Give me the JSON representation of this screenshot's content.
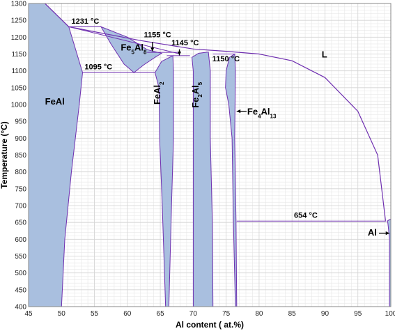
{
  "chart_data": {
    "type": "area",
    "title": "",
    "xlabel": "Al content ( at.%)",
    "ylabel": "Temperature (°C)",
    "xlim": [
      45,
      100
    ],
    "ylim": [
      400,
      1300
    ],
    "xticks": [
      45,
      50,
      55,
      60,
      65,
      70,
      75,
      80,
      85,
      90,
      95,
      100
    ],
    "yticks": [
      400,
      450,
      500,
      550,
      600,
      650,
      700,
      750,
      800,
      850,
      900,
      950,
      1000,
      1050,
      1100,
      1150,
      1200,
      1250,
      1300
    ],
    "grid": true,
    "colors": {
      "phase_fill": "#a9bfdf",
      "boundary": "#6f2fb0",
      "grid": "#d4d4d4"
    },
    "phase_regions": [
      {
        "label": "FeAl",
        "polygon": [
          [
            45,
            1300
          ],
          [
            47.5,
            1300
          ],
          [
            51.1,
            1231
          ],
          [
            53.2,
            1095
          ],
          [
            52.7,
            1000
          ],
          [
            51.5,
            800
          ],
          [
            50.5,
            600
          ],
          [
            50,
            400
          ],
          [
            45,
            400
          ]
        ]
      },
      {
        "label": "Fe5Al8",
        "polygon": [
          [
            56,
            1231
          ],
          [
            60,
            1200
          ],
          [
            63,
            1163
          ],
          [
            65.2,
            1152
          ],
          [
            64.2,
            1140
          ],
          [
            62.5,
            1118
          ],
          [
            61,
            1095
          ],
          [
            59.5,
            1120
          ],
          [
            57.5,
            1180
          ]
        ]
      },
      {
        "label": "FeAl2",
        "polygon": [
          [
            64.2,
            1095
          ],
          [
            65.2,
            1128
          ],
          [
            66.9,
            1145
          ],
          [
            67,
            1100
          ],
          [
            67,
            900
          ],
          [
            66.7,
            700
          ],
          [
            66.3,
            400
          ],
          [
            65.8,
            400
          ],
          [
            65.3,
            700
          ],
          [
            64.9,
            900
          ],
          [
            64.8,
            1050
          ]
        ]
      },
      {
        "label": "Fe2Al5",
        "polygon": [
          [
            69.8,
            1140
          ],
          [
            70.8,
            1152
          ],
          [
            72.3,
            1156
          ],
          [
            72.6,
            1100
          ],
          [
            72.6,
            900
          ],
          [
            72.9,
            650
          ],
          [
            73,
            400
          ],
          [
            70,
            400
          ],
          [
            70,
            900
          ],
          [
            70,
            1100
          ]
        ]
      },
      {
        "label": "Fe4Al13",
        "polygon": [
          [
            75,
            1100
          ],
          [
            75.5,
            1140
          ],
          [
            76.3,
            1150
          ],
          [
            76.4,
            1100
          ],
          [
            76.3,
            900
          ],
          [
            76.5,
            654
          ],
          [
            76.6,
            400
          ],
          [
            76.4,
            400
          ],
          [
            76.1,
            654
          ],
          [
            75.9,
            900
          ],
          [
            75.4,
            1000
          ],
          [
            74.9,
            1050
          ]
        ]
      },
      {
        "label": "Al",
        "polygon": [
          [
            99.5,
            655
          ],
          [
            100,
            660
          ],
          [
            100,
            400
          ],
          [
            99.8,
            400
          ],
          [
            99.8,
            600
          ],
          [
            99.6,
            640
          ]
        ]
      }
    ],
    "liquidus": [
      [
        47.5,
        1300
      ],
      [
        51.1,
        1231
      ],
      [
        62,
        1190
      ],
      [
        70,
        1165
      ],
      [
        75,
        1158
      ],
      [
        80,
        1150
      ],
      [
        85,
        1130
      ],
      [
        90,
        1080
      ],
      [
        95,
        980
      ],
      [
        98,
        850
      ],
      [
        99.2,
        655
      ]
    ],
    "invariant_lines": [
      {
        "label": "1231 °C",
        "temperature": 1231,
        "x_from": 51.1,
        "x_to": 56
      },
      {
        "label": "1155 °C",
        "temperature": 1155,
        "x_from": 63,
        "x_to": 68
      },
      {
        "label": "1145 °C",
        "temperature": 1145,
        "x_from": 66,
        "x_to": 69.5
      },
      {
        "label": "1150 °C",
        "temperature": 1150,
        "x_from": 73,
        "x_to": 76.4
      },
      {
        "label": "1095 °C",
        "temperature": 1095,
        "x_from": 53.2,
        "x_to": 64.2
      },
      {
        "label": "654 °C",
        "temperature": 654,
        "x_from": 76.6,
        "x_to": 99.3
      }
    ],
    "phase_labels": [
      {
        "text": "FeAl",
        "x": 47.5,
        "y": 1000
      },
      {
        "text": "Fe5Al8",
        "x": 59,
        "y": 1160
      },
      {
        "text": "FeAl2",
        "x": 65,
        "y": 1000
      },
      {
        "text": "Fe2Al5",
        "x": 70.8,
        "y": 990
      },
      {
        "text": "Fe4Al13",
        "x": 78.2,
        "y": 970
      },
      {
        "text": "L",
        "x": 89.5,
        "y": 1140
      },
      {
        "text": "Al",
        "x": 96.5,
        "y": 611
      }
    ]
  }
}
